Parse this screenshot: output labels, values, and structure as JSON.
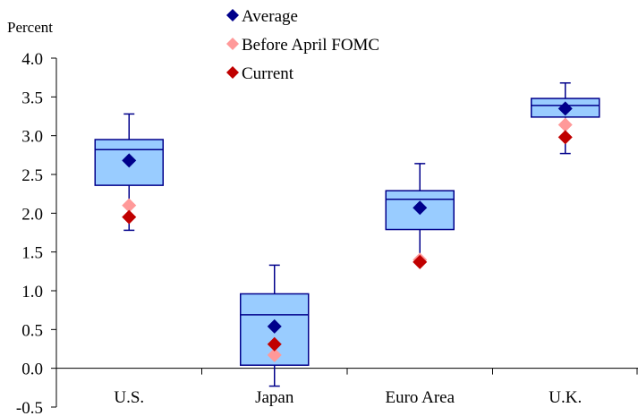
{
  "chart_data": {
    "type": "box",
    "ylabel": "Percent",
    "ylim": [
      -0.5,
      4.0
    ],
    "yticks": [
      -0.5,
      0.0,
      0.5,
      1.0,
      1.5,
      2.0,
      2.5,
      3.0,
      3.5,
      4.0
    ],
    "ytick_labels": [
      "-0.5",
      "0.0",
      "0.5",
      "1.0",
      "1.5",
      "2.0",
      "2.5",
      "3.0",
      "3.5",
      "4.0"
    ],
    "categories": [
      "U.S.",
      "Japan",
      "Euro Area",
      "U.K."
    ],
    "boxes": [
      {
        "whisker_low": 1.78,
        "q1": 2.36,
        "median": 2.82,
        "q3": 2.95,
        "whisker_high": 3.28
      },
      {
        "whisker_low": -0.23,
        "q1": 0.04,
        "median": 0.69,
        "q3": 0.96,
        "whisker_high": 1.33
      },
      {
        "whisker_low": 1.38,
        "q1": 1.79,
        "median": 2.18,
        "q3": 2.29,
        "whisker_high": 2.64
      },
      {
        "whisker_low": 2.77,
        "q1": 3.24,
        "median": 3.39,
        "q3": 3.48,
        "whisker_high": 3.68
      }
    ],
    "series": [
      {
        "name": "Average",
        "color": "#00008b",
        "values": [
          2.68,
          0.54,
          2.07,
          3.35
        ]
      },
      {
        "name": "Before April FOMC",
        "color": "#ff9999",
        "values": [
          2.1,
          0.17,
          1.4,
          3.14
        ]
      },
      {
        "name": "Current",
        "color": "#c00000",
        "values": [
          1.95,
          0.31,
          1.37,
          2.98
        ]
      }
    ],
    "box_fill": "#99ccff",
    "box_stroke": "#00008b",
    "legend_position": "top-center",
    "grid": false
  }
}
